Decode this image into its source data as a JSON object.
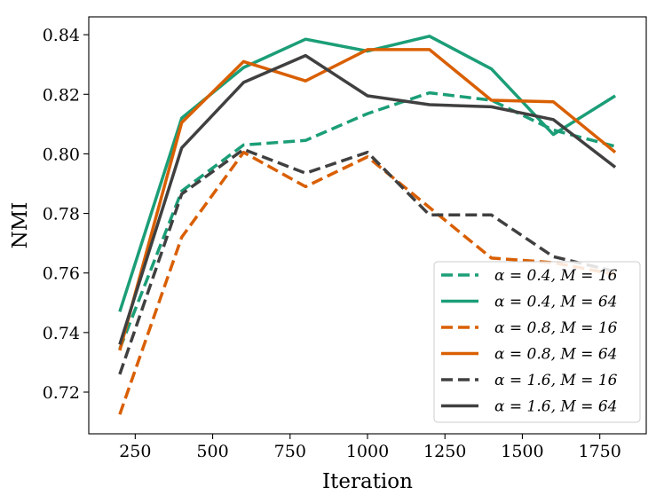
{
  "chart_data": {
    "type": "line",
    "title": "",
    "xlabel": "Iteration",
    "ylabel": "NMI",
    "xlim": [
      100,
      1900
    ],
    "ylim": [
      0.706,
      0.846
    ],
    "xticks": [
      250,
      500,
      750,
      1000,
      1250,
      1500,
      1750
    ],
    "yticks": [
      0.72,
      0.74,
      0.76,
      0.78,
      0.8,
      0.82,
      0.84
    ],
    "xtick_labels": [
      "250",
      "500",
      "750",
      "1000",
      "1250",
      "1500",
      "1750"
    ],
    "ytick_labels": [
      "0.72",
      "0.74",
      "0.76",
      "0.78",
      "0.80",
      "0.82",
      "0.84"
    ],
    "grid": false,
    "legend_position": "lower-right",
    "x": [
      200,
      400,
      600,
      800,
      1000,
      1200,
      1400,
      1600,
      1800
    ],
    "series": [
      {
        "name": "α = 0.4, M = 16",
        "color": "#1b9e77",
        "dash": "dashed",
        "values": [
          0.7345,
          0.7875,
          0.803,
          0.8045,
          0.8135,
          0.8205,
          0.818,
          0.808,
          0.8025
        ]
      },
      {
        "name": "α = 0.4, M = 64",
        "color": "#1b9e77",
        "dash": "solid",
        "values": [
          0.747,
          0.812,
          0.829,
          0.8385,
          0.8345,
          0.8395,
          0.8285,
          0.8065,
          0.8195
        ]
      },
      {
        "name": "α = 0.8, M = 16",
        "color": "#d95f02",
        "dash": "dashed",
        "values": [
          0.7125,
          0.772,
          0.8005,
          0.789,
          0.799,
          0.782,
          0.765,
          0.7635,
          0.7595
        ]
      },
      {
        "name": "α = 0.8, M = 64",
        "color": "#d95f02",
        "dash": "solid",
        "values": [
          0.734,
          0.8105,
          0.831,
          0.8245,
          0.835,
          0.835,
          0.818,
          0.8175,
          0.8005
        ]
      },
      {
        "name": "α = 1.6, M = 16",
        "color": "#404040",
        "dash": "dashed",
        "values": [
          0.726,
          0.7865,
          0.8015,
          0.7935,
          0.8005,
          0.7795,
          0.7795,
          0.7655,
          0.7605
        ]
      },
      {
        "name": "α = 1.6, M = 64",
        "color": "#404040",
        "dash": "solid",
        "values": [
          0.736,
          0.802,
          0.824,
          0.833,
          0.8195,
          0.8165,
          0.8158,
          0.8115,
          0.7955
        ]
      }
    ]
  }
}
